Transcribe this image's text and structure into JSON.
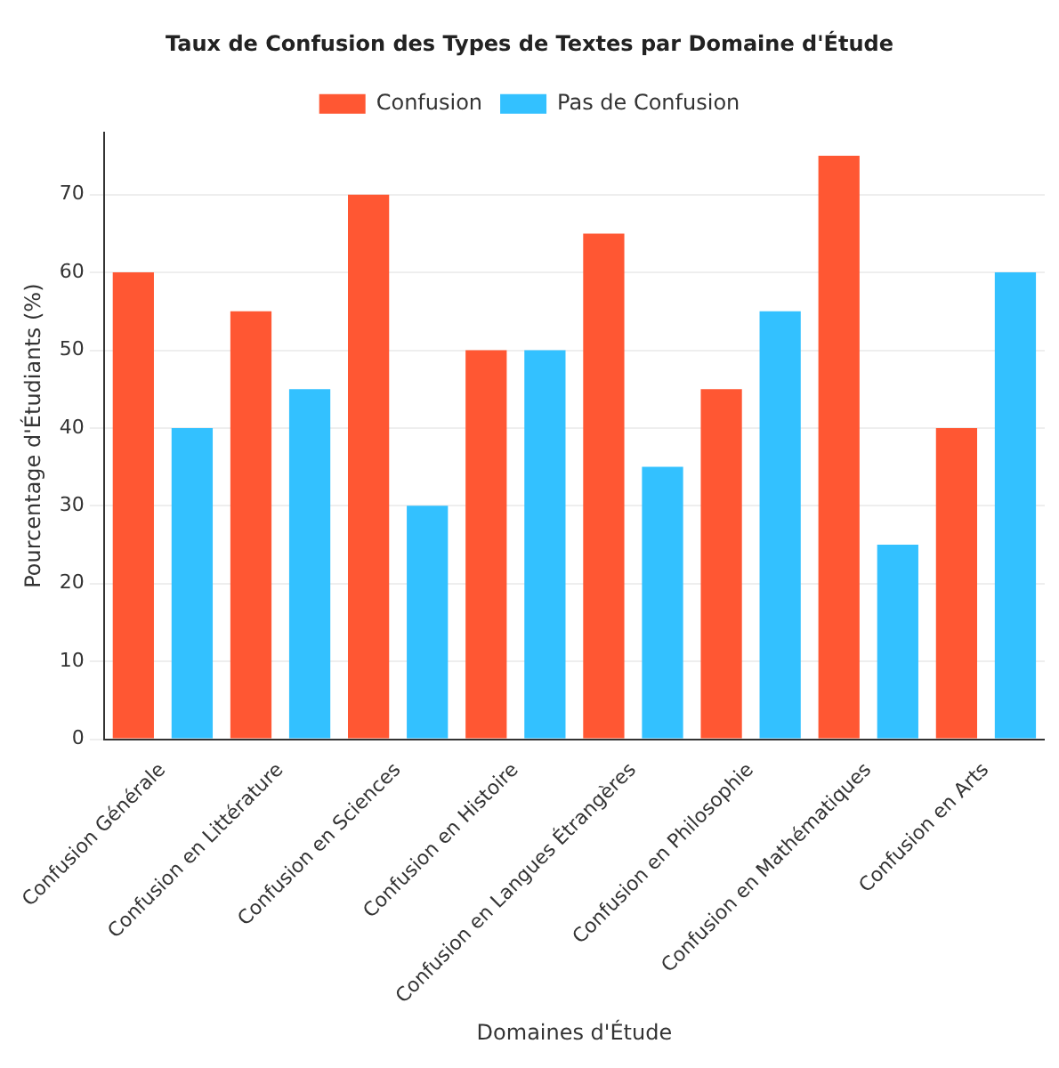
{
  "chart_data": {
    "type": "bar",
    "title": "Taux de Confusion des Types de Textes par Domaine d'Étude",
    "xlabel": "Domaines d'Étude",
    "ylabel": "Pourcentage d'Étudiants (%)",
    "categories": [
      "Confusion Générale",
      "Confusion en Littérature",
      "Confusion en Sciences",
      "Confusion en Histoire",
      "Confusion en Langues Étrangères",
      "Confusion en Philosophie",
      "Confusion en Mathématiques",
      "Confusion en Arts"
    ],
    "series": [
      {
        "name": "Confusion",
        "color": "#ff5733",
        "values": [
          60,
          55,
          70,
          50,
          65,
          45,
          75,
          40
        ]
      },
      {
        "name": "Pas de Confusion",
        "color": "#33c1ff",
        "values": [
          40,
          45,
          30,
          50,
          35,
          55,
          25,
          60
        ]
      }
    ],
    "ylim": [
      0,
      78
    ],
    "yticks": [
      0,
      10,
      20,
      30,
      40,
      50,
      60,
      70
    ],
    "grid": "y",
    "legend": "top"
  }
}
